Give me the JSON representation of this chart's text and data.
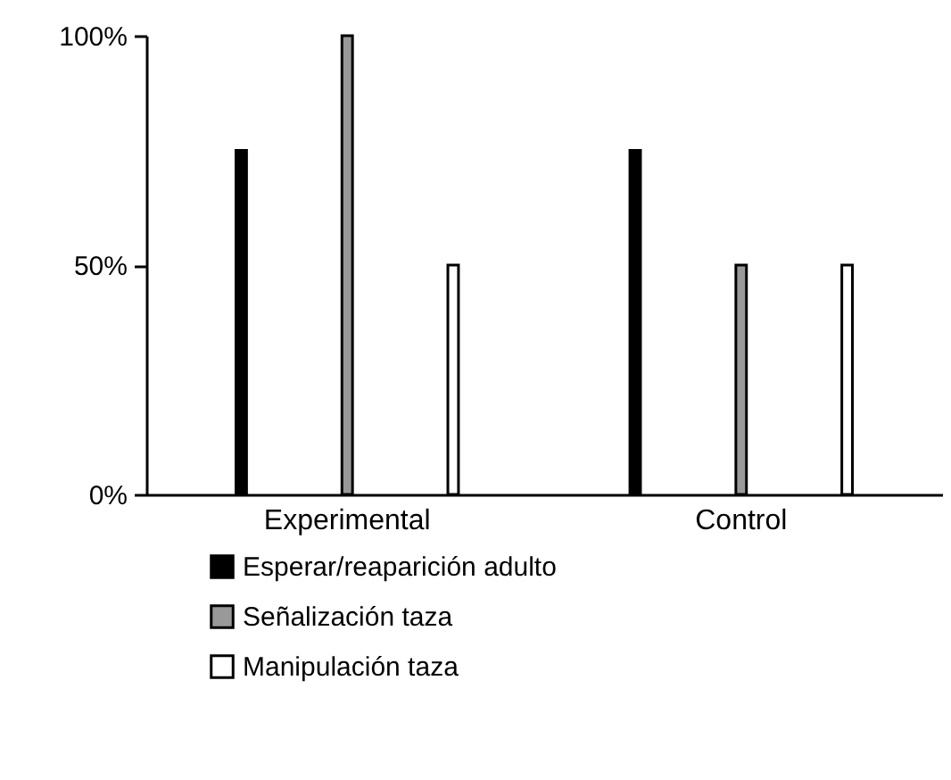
{
  "chart_data": {
    "type": "bar",
    "categories": [
      "Experimental",
      "Control"
    ],
    "series": [
      {
        "name": "Esperar/reaparición adulto",
        "color": "#000000",
        "values": [
          75,
          75
        ]
      },
      {
        "name": "Señalización taza",
        "color": "#999999",
        "values": [
          100,
          50
        ]
      },
      {
        "name": "Manipulación taza",
        "color": "#ffffff",
        "values": [
          50,
          50
        ]
      }
    ],
    "ylim": [
      0,
      100
    ],
    "yticks": [
      {
        "value": 0,
        "label": "0%"
      },
      {
        "value": 50,
        "label": "50%"
      },
      {
        "value": 100,
        "label": "100%"
      }
    ],
    "grid": false,
    "legend": "bottom"
  }
}
